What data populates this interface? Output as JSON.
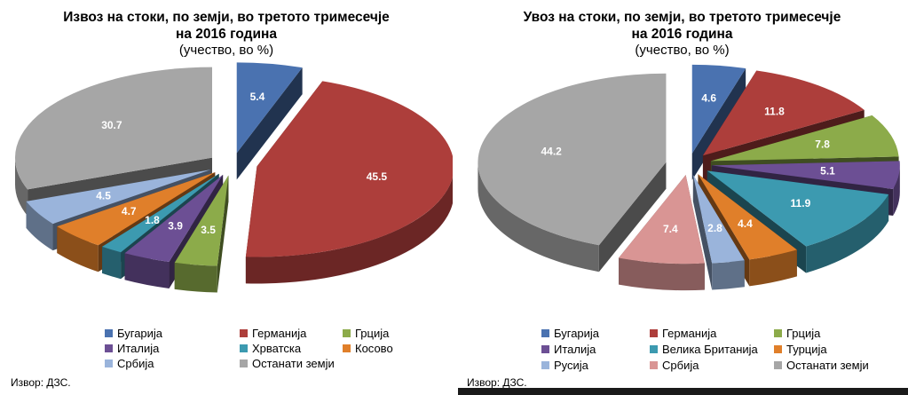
{
  "chart_data": [
    {
      "type": "pie",
      "title_line1": "Извоз на стоки, по земји, во третото тримесечје",
      "title_line2": "на 2016 година",
      "subtitle": "(учество, во %)",
      "categories": [
        "Бугарија",
        "Германија",
        "Грција",
        "Италија",
        "Хрватска",
        "Косово",
        "Србија",
        "Останати земји"
      ],
      "values": [
        5.4,
        45.5,
        3.5,
        3.9,
        1.8,
        4.7,
        4.5,
        30.7
      ],
      "colors": [
        "#4a72b0",
        "#ad3e3b",
        "#8cab4a",
        "#6c4f94",
        "#3c9ab0",
        "#e07f2a",
        "#9ab4db",
        "#a6a6a6"
      ],
      "legend_placement": "bottom",
      "source": "Извор: ДЗС."
    },
    {
      "type": "pie",
      "title_line1": "Увоз на стоки, по земји, во  третото тримесечје",
      "title_line2": "на 2016 година",
      "subtitle": "(учество, во %)",
      "categories": [
        "Бугарија",
        "Германија",
        "Грција",
        "Италија",
        "Велика Британија",
        "Турција",
        "Русија",
        "Србија",
        "Останати земји"
      ],
      "values": [
        4.6,
        11.8,
        7.8,
        5.1,
        11.9,
        4.4,
        2.8,
        7.4,
        44.2
      ],
      "colors": [
        "#4a72b0",
        "#ad3e3b",
        "#8cab4a",
        "#6c4f94",
        "#3c9ab0",
        "#e07f2a",
        "#9ab4db",
        "#d99594",
        "#a6a6a6"
      ],
      "legend_placement": "bottom",
      "source": "Извор: ДЗС."
    }
  ]
}
